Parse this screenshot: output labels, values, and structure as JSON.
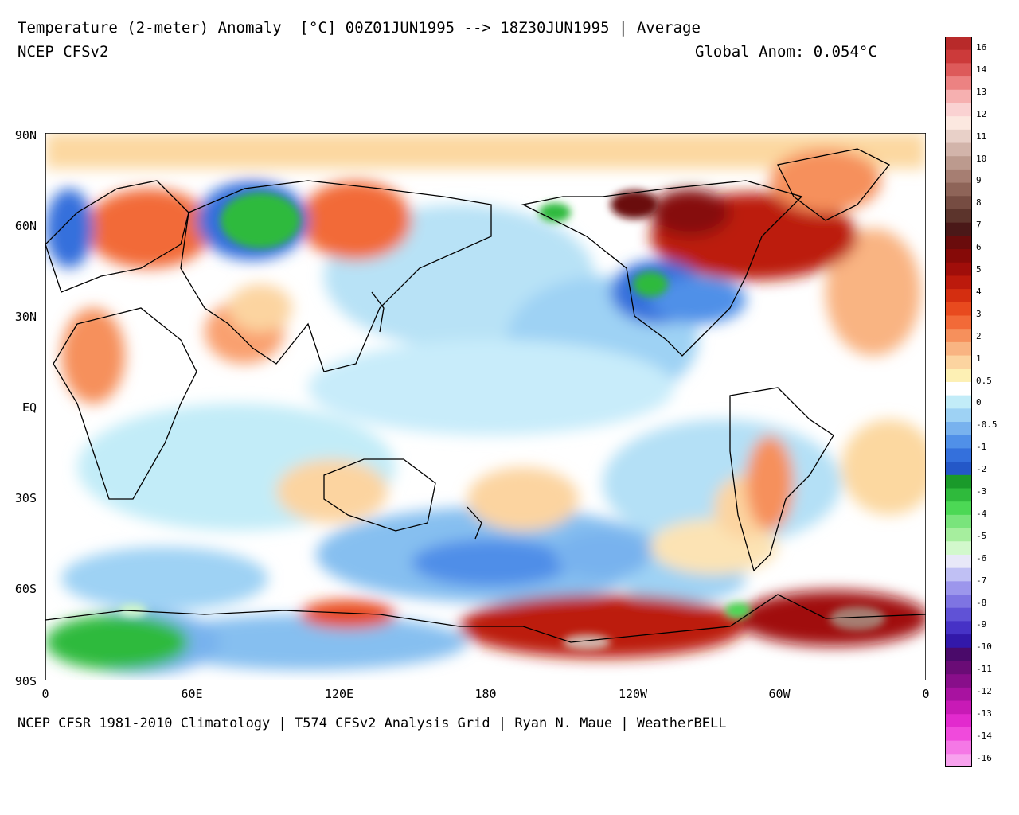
{
  "header": {
    "title": "Temperature (2-meter) Anomaly  [°C] 00Z01JUN1995 --> 18Z30JUN1995 | Average",
    "model": "NCEP CFSv2",
    "global_anomaly": "Global Anom: 0.054°C"
  },
  "footer": {
    "credit": "NCEP CFSR 1981-2010 Climatology | T574 CFSv2 Analysis Grid | Ryan N. Maue | WeatherBELL"
  },
  "map": {
    "lat_labels": [
      "90N",
      "60N",
      "30N",
      "EQ",
      "30S",
      "60S",
      "90S"
    ],
    "lon_labels": [
      "0",
      "60E",
      "120E",
      "180",
      "120W",
      "60W",
      "0"
    ]
  },
  "colorbar": {
    "labels": [
      "16",
      "14",
      "13",
      "12",
      "11",
      "10",
      "9",
      "8",
      "7",
      "6",
      "5",
      "4",
      "3",
      "2",
      "1",
      "0.5",
      "0",
      "-0.5",
      "-1",
      "-2",
      "-3",
      "-4",
      "-5",
      "-6",
      "-7",
      "-8",
      "-9",
      "-10",
      "-11",
      "-12",
      "-13",
      "-14",
      "-16"
    ],
    "colors": [
      "#b82a2a",
      "#cc3a3a",
      "#dd5a5a",
      "#ec8282",
      "#f6b0b0",
      "#fad2d2",
      "#fce8e0",
      "#e8d0c8",
      "#d2b4aa",
      "#bc9a8e",
      "#a67e72",
      "#8e6458",
      "#764c42",
      "#5c342c",
      "#4a1818",
      "#6a0c0c",
      "#860a08",
      "#a00e0a",
      "#bc1a0c",
      "#d42e10",
      "#e84a1e",
      "#f26a38",
      "#f6905c",
      "#f9b482",
      "#fcd4a0",
      "#fdf0b4",
      "#ffffff",
      "#c2ecf8",
      "#9ed2f4",
      "#78b2ee",
      "#5090e8",
      "#3470dc",
      "#2458c8",
      "#1a9a2a",
      "#2fba3c",
      "#4cd855",
      "#7ae47c",
      "#a6ee9e",
      "#d2f8cc",
      "#e8e8f8",
      "#c0c0f4",
      "#9c96ec",
      "#7e74e2",
      "#6052d6",
      "#4632c6",
      "#3218aa",
      "#4a0a6a",
      "#6a0c76",
      "#880e8a",
      "#a812a0",
      "#c81ab6",
      "#e22ace",
      "#f04adc",
      "#f578e6",
      "#f8a2ee"
    ]
  }
}
